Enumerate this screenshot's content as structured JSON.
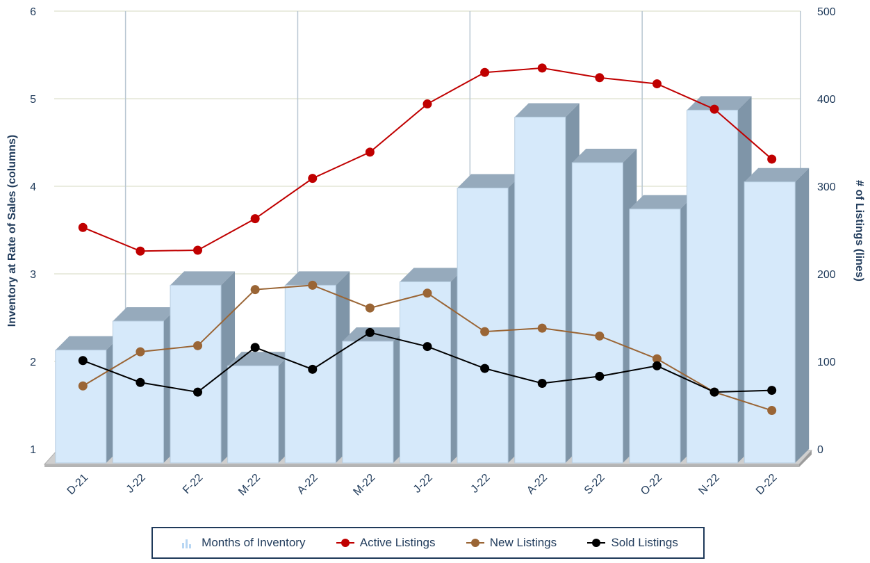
{
  "chart_data": {
    "type": "bar",
    "categories": [
      "D-21",
      "J-22",
      "F-22",
      "M-22",
      "A-22",
      "M-22",
      "J-22",
      "J-22",
      "A-22",
      "S-22",
      "O-22",
      "N-22",
      "D-22"
    ],
    "y_left": {
      "label": "Inventory at Rate of Sales (columns)",
      "range": [
        1,
        6
      ],
      "ticks": [
        "1",
        "2",
        "3",
        "4",
        "5",
        "6"
      ]
    },
    "y_right": {
      "label": "# of Listings (lines)",
      "range": [
        0,
        500
      ],
      "ticks": [
        "0",
        "100",
        "200",
        "300",
        "400",
        "500"
      ]
    },
    "series": [
      {
        "name": "Months of Inventory",
        "type": "bar",
        "axis": "left",
        "color": "#d6e9fa",
        "values": [
          2.13,
          2.46,
          2.87,
          1.95,
          2.87,
          2.23,
          2.91,
          3.98,
          4.79,
          4.27,
          3.74,
          4.87,
          4.05
        ]
      },
      {
        "name": "Active Listings",
        "type": "line",
        "axis": "right",
        "color": "#c00000",
        "values": [
          253,
          226,
          227,
          263,
          309,
          339,
          394,
          430,
          435,
          424,
          417,
          388,
          331
        ]
      },
      {
        "name": "New Listings",
        "type": "line",
        "axis": "right",
        "color": "#9a6535",
        "values": [
          72,
          111,
          118,
          182,
          187,
          161,
          178,
          134,
          138,
          129,
          103,
          65,
          44
        ]
      },
      {
        "name": "Sold Listings",
        "type": "line",
        "axis": "right",
        "color": "#000000",
        "values": [
          101,
          76,
          65,
          116,
          91,
          133,
          117,
          92,
          75,
          83,
          95,
          65,
          67
        ]
      }
    ],
    "grid": true,
    "legend_position": "bottom"
  },
  "legend": {
    "items": [
      {
        "label": "Months of Inventory",
        "icon": "bar-icon"
      },
      {
        "label": "Active Listings",
        "icon": "line-marker-icon"
      },
      {
        "label": "New Listings",
        "icon": "line-marker-icon"
      },
      {
        "label": "Sold Listings",
        "icon": "line-marker-icon"
      }
    ]
  }
}
